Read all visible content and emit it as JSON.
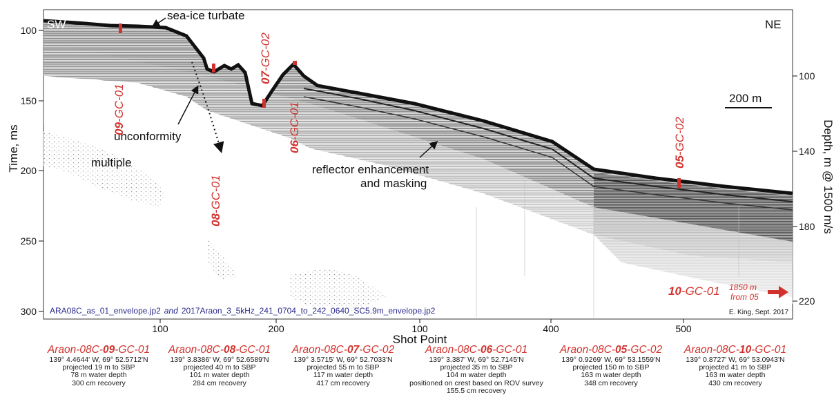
{
  "figure": {
    "direction_left": "SW",
    "direction_right": "NE",
    "y_axis_left_label": "Time, ms",
    "y_axis_left_ticks": [
      "100",
      "150",
      "200",
      "250",
      "300"
    ],
    "y_axis_right_label": "Depth, m @ 1500 m/s",
    "y_axis_right_ticks": [
      "100",
      "140",
      "180",
      "220"
    ],
    "x_axis_label": "Shot Point",
    "x_axis_ticks": [
      "100",
      "200",
      "100",
      "400",
      "500"
    ],
    "scale_bar": "200 m",
    "credit": "E. King, Sept. 2017",
    "source_files": {
      "file1": "ARA08C_as_01_envelope.jp2",
      "conj": "and",
      "file2": "2017Araon_3_5kHz_241_0704_to_242_0640_SC5.9m_envelope.jp2"
    },
    "annotations": {
      "sea_ice_turbate": "sea-ice turbate",
      "unconformity": "unconformity",
      "multiple": "multiple",
      "reflector_line1": "reflector enhancement",
      "reflector_line2": "and masking"
    },
    "core_markers": [
      {
        "prefix": "09",
        "suffix": "-GC-01"
      },
      {
        "prefix": "08",
        "suffix": "-GC-01"
      },
      {
        "prefix": "07",
        "suffix": "-GC-02"
      },
      {
        "prefix": "06",
        "suffix": "-GC-01"
      },
      {
        "prefix": "05",
        "suffix": "-GC-02"
      },
      {
        "prefix": "10",
        "suffix": "-GC-01"
      }
    ],
    "offsite_line1": "1850 m",
    "offsite_line2": "from 05",
    "colors": {
      "core_red": "#d2322d",
      "file_blue": "#2a2a8c"
    }
  },
  "cores": [
    {
      "title_pre": "Araon-08C-",
      "title_bold": "09",
      "title_post": "-GC-01",
      "lines": [
        "139° 4.4644' W, 69° 52.5712'N",
        "projected 19 m to SBP",
        "78 m water depth",
        "300 cm recovery"
      ]
    },
    {
      "title_pre": "Araon-08C-",
      "title_bold": "08",
      "title_post": "-GC-01",
      "lines": [
        "139° 3.8386' W, 69° 52.6589'N",
        "projected 40 m to SBP",
        "101 m water depth",
        "284 cm recovery"
      ]
    },
    {
      "title_pre": "Araon-08C-",
      "title_bold": "07",
      "title_post": "-GC-02",
      "lines": [
        "139° 3.5715' W, 69° 52.7033'N",
        "projected 55 m to SBP",
        "117 m water depth",
        "417 cm recovery"
      ]
    },
    {
      "title_pre": "Araon-08C-",
      "title_bold": "06",
      "title_post": "-GC-01",
      "lines": [
        "139° 3.387' W, 69° 52.7145'N",
        "projected 35 m to SBP",
        "104 m water depth",
        "positioned on crest based on ROV survey",
        "155.5 cm recovery"
      ]
    },
    {
      "title_pre": "Araon-08C-",
      "title_bold": "05",
      "title_post": "-GC-02",
      "lines": [
        "139° 0.9269' W, 69° 53.1559'N",
        "projected 150 m to SBP",
        "163 m water depth",
        "348 cm recovery"
      ]
    },
    {
      "title_pre": "Araon-08C-",
      "title_bold": "10",
      "title_post": "-GC-01",
      "lines": [
        "139° 0.8727' W, 69° 53.0943'N",
        "projected 41 m to SBP",
        "163 m water depth",
        "430 cm recovery"
      ]
    }
  ]
}
